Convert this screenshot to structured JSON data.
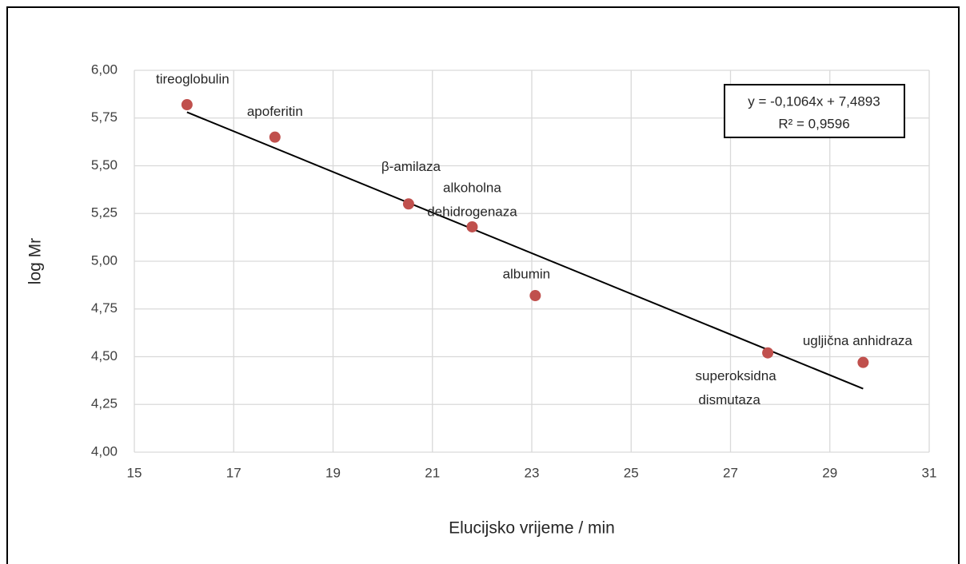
{
  "chart_data": {
    "type": "scatter",
    "x_label": "Elucijsko vrijeme / min",
    "y_label": "log Mr",
    "x": [
      16.06,
      17.83,
      20.52,
      21.8,
      23.07,
      27.75,
      29.67
    ],
    "values": [
      5.82,
      5.65,
      5.3,
      5.18,
      4.82,
      4.52,
      4.47
    ],
    "point_labels": [
      [
        "tireoglobulin"
      ],
      [
        "apoferitin"
      ],
      [
        "β-amilaza"
      ],
      [
        "alkoholna",
        "dehidrogenaza"
      ],
      [
        "albumin"
      ],
      [
        "superoksidna",
        "dismutaza"
      ],
      [
        "ugljična anhidraza"
      ]
    ],
    "color": "#c0504d",
    "xlim": [
      15,
      31
    ],
    "xticks": [
      15,
      17,
      19,
      21,
      23,
      25,
      27,
      29,
      31
    ],
    "ylim": [
      4,
      6
    ],
    "yticks": [
      {
        "value": 4,
        "label": "4,00"
      },
      {
        "value": 4.25,
        "label": "4,25"
      },
      {
        "value": 4.5,
        "label": "4,50"
      },
      {
        "value": 4.75,
        "label": "4,75"
      },
      {
        "value": 5,
        "label": "5,00"
      },
      {
        "value": 5.25,
        "label": "5,25"
      },
      {
        "value": 5.5,
        "label": "5,50"
      },
      {
        "value": 5.75,
        "label": "5,75"
      },
      {
        "value": 6,
        "label": "6,00"
      }
    ],
    "grid": true,
    "trendline": {
      "slope": -0.1064,
      "intercept": 7.4893,
      "equation_label": "y = -0,1064x + 7,4893",
      "r2_label": "R² = 0,9596",
      "color": "#000000"
    }
  }
}
